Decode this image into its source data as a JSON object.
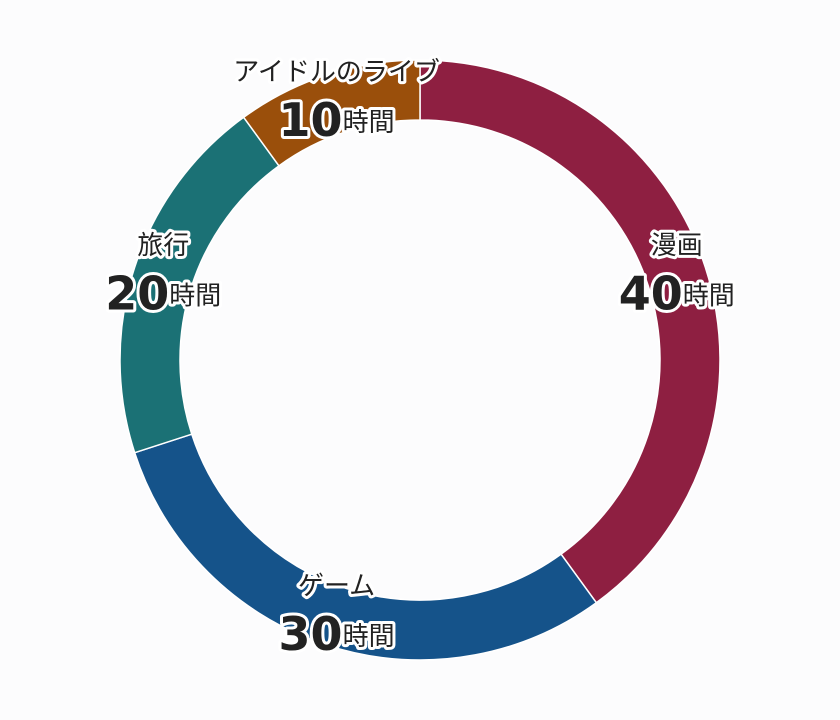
{
  "chart_data": {
    "type": "doughnut",
    "categories": [
      "漫画",
      "ゲーム",
      "旅行",
      "アイドルのライブ"
    ],
    "values": [
      40,
      30,
      20,
      10
    ],
    "unit": "時間",
    "colors": [
      "#8e1f41",
      "#15538a",
      "#1b7175",
      "#9a4f0b"
    ]
  }
}
